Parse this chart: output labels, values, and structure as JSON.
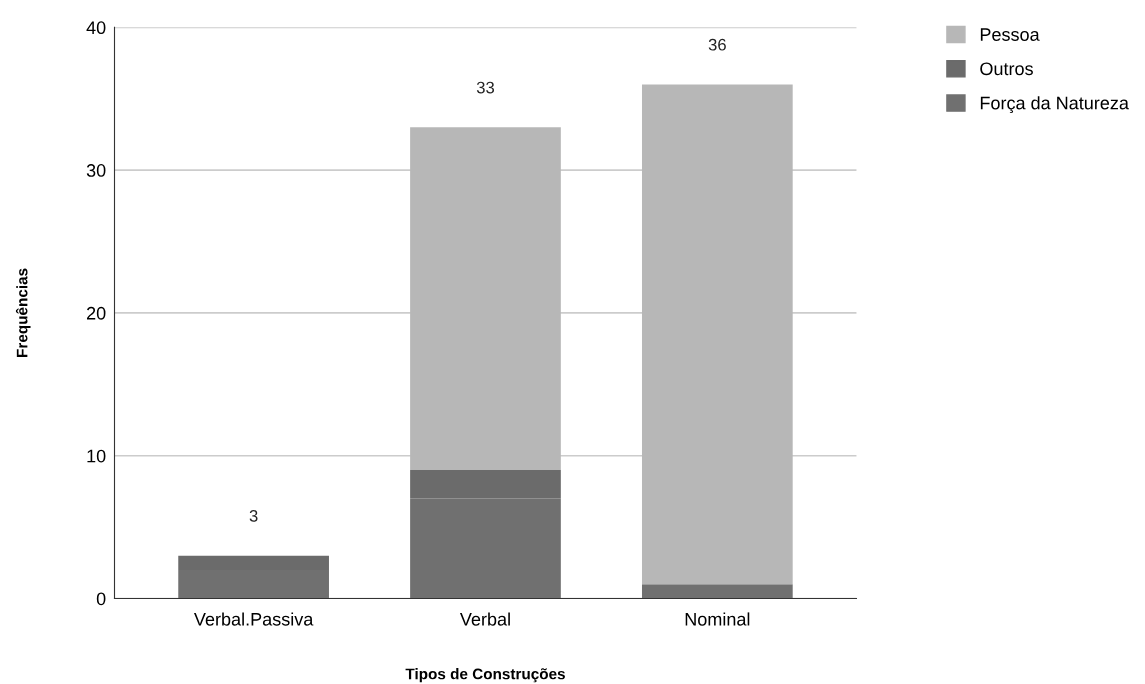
{
  "chart_data": {
    "type": "bar",
    "stacked": true,
    "xlabel": "Tipos de Construções",
    "ylabel": "Frequências",
    "categories": [
      "Verbal.Passiva",
      "Verbal",
      "Nominal"
    ],
    "series": [
      {
        "name": "Força da Natureza",
        "color": "#707070",
        "values": [
          2,
          7,
          1
        ]
      },
      {
        "name": "Outros",
        "color": "#6b6b6b",
        "values": [
          1,
          2,
          0
        ]
      },
      {
        "name": "Pessoa",
        "color": "#b7b7b7",
        "values": [
          0,
          24,
          35
        ]
      }
    ],
    "totals": [
      "3",
      "33",
      "36"
    ],
    "ylim": [
      0,
      40
    ],
    "yticks": [
      0,
      10,
      20,
      30,
      40
    ],
    "grid": "y",
    "legend": "top right"
  }
}
